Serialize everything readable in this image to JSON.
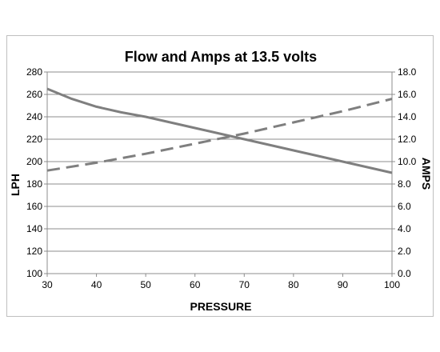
{
  "chart_data": {
    "type": "line",
    "title": "Flow and Amps at 13.5 volts",
    "xlabel": "PRESSURE",
    "ylabel": "LPH",
    "y2label": "AMPS",
    "xlim": [
      30,
      100
    ],
    "ylim": [
      100,
      280
    ],
    "y2lim": [
      0.0,
      18.0
    ],
    "grid": true,
    "x_ticks": [
      "30",
      "40",
      "50",
      "60",
      "70",
      "80",
      "90",
      "100"
    ],
    "y_ticks": [
      "100",
      "120",
      "140",
      "160",
      "180",
      "200",
      "220",
      "240",
      "260",
      "280"
    ],
    "y2_ticks": [
      "0.0",
      "2.0",
      "4.0",
      "6.0",
      "8.0",
      "10.0",
      "12.0",
      "14.0",
      "16.0",
      "18.0"
    ],
    "series": [
      {
        "axis": "left",
        "style": "solid",
        "color": "#7f7f7f",
        "x": [
          30,
          35,
          40,
          45,
          50,
          60,
          70,
          80,
          90,
          100
        ],
        "y": [
          265,
          256,
          249,
          244,
          240,
          230,
          220,
          210,
          200,
          190
        ]
      },
      {
        "axis": "right",
        "style": "dashed",
        "color": "#7f7f7f",
        "x": [
          30,
          40,
          50,
          60,
          70,
          80,
          90,
          100
        ],
        "y": [
          9.2,
          9.9,
          10.7,
          11.6,
          12.5,
          13.5,
          14.5,
          15.6
        ]
      }
    ]
  }
}
